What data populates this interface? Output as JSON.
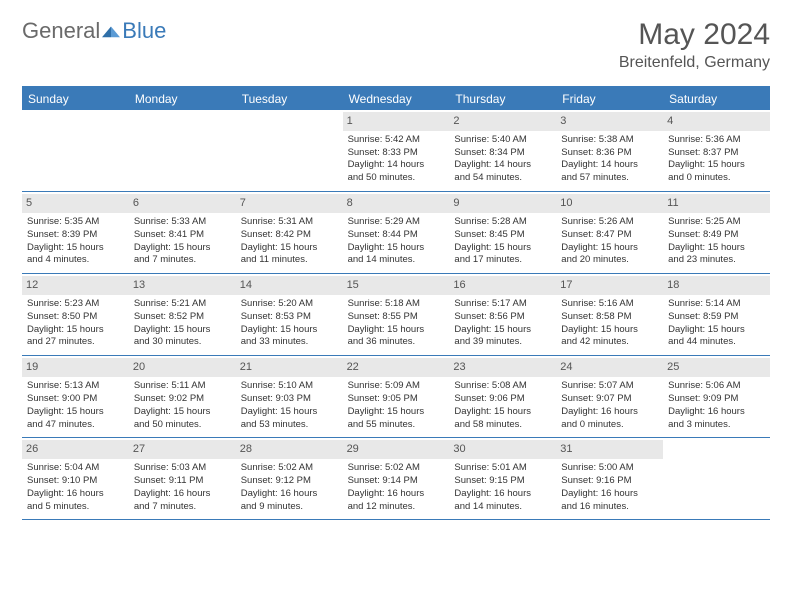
{
  "logo": {
    "general": "General",
    "blue": "Blue"
  },
  "header": {
    "month": "May 2024",
    "location": "Breitenfeld, Germany"
  },
  "colors": {
    "accent": "#3a7ab8",
    "dayhead_bg": "#e8e8e8",
    "text": "#333333"
  },
  "daylabels": [
    "Sunday",
    "Monday",
    "Tuesday",
    "Wednesday",
    "Thursday",
    "Friday",
    "Saturday"
  ],
  "weeks": [
    [
      null,
      null,
      null,
      {
        "n": "1",
        "sr": "Sunrise: 5:42 AM",
        "ss": "Sunset: 8:33 PM",
        "dl1": "Daylight: 14 hours",
        "dl2": "and 50 minutes."
      },
      {
        "n": "2",
        "sr": "Sunrise: 5:40 AM",
        "ss": "Sunset: 8:34 PM",
        "dl1": "Daylight: 14 hours",
        "dl2": "and 54 minutes."
      },
      {
        "n": "3",
        "sr": "Sunrise: 5:38 AM",
        "ss": "Sunset: 8:36 PM",
        "dl1": "Daylight: 14 hours",
        "dl2": "and 57 minutes."
      },
      {
        "n": "4",
        "sr": "Sunrise: 5:36 AM",
        "ss": "Sunset: 8:37 PM",
        "dl1": "Daylight: 15 hours",
        "dl2": "and 0 minutes."
      }
    ],
    [
      {
        "n": "5",
        "sr": "Sunrise: 5:35 AM",
        "ss": "Sunset: 8:39 PM",
        "dl1": "Daylight: 15 hours",
        "dl2": "and 4 minutes."
      },
      {
        "n": "6",
        "sr": "Sunrise: 5:33 AM",
        "ss": "Sunset: 8:41 PM",
        "dl1": "Daylight: 15 hours",
        "dl2": "and 7 minutes."
      },
      {
        "n": "7",
        "sr": "Sunrise: 5:31 AM",
        "ss": "Sunset: 8:42 PM",
        "dl1": "Daylight: 15 hours",
        "dl2": "and 11 minutes."
      },
      {
        "n": "8",
        "sr": "Sunrise: 5:29 AM",
        "ss": "Sunset: 8:44 PM",
        "dl1": "Daylight: 15 hours",
        "dl2": "and 14 minutes."
      },
      {
        "n": "9",
        "sr": "Sunrise: 5:28 AM",
        "ss": "Sunset: 8:45 PM",
        "dl1": "Daylight: 15 hours",
        "dl2": "and 17 minutes."
      },
      {
        "n": "10",
        "sr": "Sunrise: 5:26 AM",
        "ss": "Sunset: 8:47 PM",
        "dl1": "Daylight: 15 hours",
        "dl2": "and 20 minutes."
      },
      {
        "n": "11",
        "sr": "Sunrise: 5:25 AM",
        "ss": "Sunset: 8:49 PM",
        "dl1": "Daylight: 15 hours",
        "dl2": "and 23 minutes."
      }
    ],
    [
      {
        "n": "12",
        "sr": "Sunrise: 5:23 AM",
        "ss": "Sunset: 8:50 PM",
        "dl1": "Daylight: 15 hours",
        "dl2": "and 27 minutes."
      },
      {
        "n": "13",
        "sr": "Sunrise: 5:21 AM",
        "ss": "Sunset: 8:52 PM",
        "dl1": "Daylight: 15 hours",
        "dl2": "and 30 minutes."
      },
      {
        "n": "14",
        "sr": "Sunrise: 5:20 AM",
        "ss": "Sunset: 8:53 PM",
        "dl1": "Daylight: 15 hours",
        "dl2": "and 33 minutes."
      },
      {
        "n": "15",
        "sr": "Sunrise: 5:18 AM",
        "ss": "Sunset: 8:55 PM",
        "dl1": "Daylight: 15 hours",
        "dl2": "and 36 minutes."
      },
      {
        "n": "16",
        "sr": "Sunrise: 5:17 AM",
        "ss": "Sunset: 8:56 PM",
        "dl1": "Daylight: 15 hours",
        "dl2": "and 39 minutes."
      },
      {
        "n": "17",
        "sr": "Sunrise: 5:16 AM",
        "ss": "Sunset: 8:58 PM",
        "dl1": "Daylight: 15 hours",
        "dl2": "and 42 minutes."
      },
      {
        "n": "18",
        "sr": "Sunrise: 5:14 AM",
        "ss": "Sunset: 8:59 PM",
        "dl1": "Daylight: 15 hours",
        "dl2": "and 44 minutes."
      }
    ],
    [
      {
        "n": "19",
        "sr": "Sunrise: 5:13 AM",
        "ss": "Sunset: 9:00 PM",
        "dl1": "Daylight: 15 hours",
        "dl2": "and 47 minutes."
      },
      {
        "n": "20",
        "sr": "Sunrise: 5:11 AM",
        "ss": "Sunset: 9:02 PM",
        "dl1": "Daylight: 15 hours",
        "dl2": "and 50 minutes."
      },
      {
        "n": "21",
        "sr": "Sunrise: 5:10 AM",
        "ss": "Sunset: 9:03 PM",
        "dl1": "Daylight: 15 hours",
        "dl2": "and 53 minutes."
      },
      {
        "n": "22",
        "sr": "Sunrise: 5:09 AM",
        "ss": "Sunset: 9:05 PM",
        "dl1": "Daylight: 15 hours",
        "dl2": "and 55 minutes."
      },
      {
        "n": "23",
        "sr": "Sunrise: 5:08 AM",
        "ss": "Sunset: 9:06 PM",
        "dl1": "Daylight: 15 hours",
        "dl2": "and 58 minutes."
      },
      {
        "n": "24",
        "sr": "Sunrise: 5:07 AM",
        "ss": "Sunset: 9:07 PM",
        "dl1": "Daylight: 16 hours",
        "dl2": "and 0 minutes."
      },
      {
        "n": "25",
        "sr": "Sunrise: 5:06 AM",
        "ss": "Sunset: 9:09 PM",
        "dl1": "Daylight: 16 hours",
        "dl2": "and 3 minutes."
      }
    ],
    [
      {
        "n": "26",
        "sr": "Sunrise: 5:04 AM",
        "ss": "Sunset: 9:10 PM",
        "dl1": "Daylight: 16 hours",
        "dl2": "and 5 minutes."
      },
      {
        "n": "27",
        "sr": "Sunrise: 5:03 AM",
        "ss": "Sunset: 9:11 PM",
        "dl1": "Daylight: 16 hours",
        "dl2": "and 7 minutes."
      },
      {
        "n": "28",
        "sr": "Sunrise: 5:02 AM",
        "ss": "Sunset: 9:12 PM",
        "dl1": "Daylight: 16 hours",
        "dl2": "and 9 minutes."
      },
      {
        "n": "29",
        "sr": "Sunrise: 5:02 AM",
        "ss": "Sunset: 9:14 PM",
        "dl1": "Daylight: 16 hours",
        "dl2": "and 12 minutes."
      },
      {
        "n": "30",
        "sr": "Sunrise: 5:01 AM",
        "ss": "Sunset: 9:15 PM",
        "dl1": "Daylight: 16 hours",
        "dl2": "and 14 minutes."
      },
      {
        "n": "31",
        "sr": "Sunrise: 5:00 AM",
        "ss": "Sunset: 9:16 PM",
        "dl1": "Daylight: 16 hours",
        "dl2": "and 16 minutes."
      },
      null
    ]
  ]
}
